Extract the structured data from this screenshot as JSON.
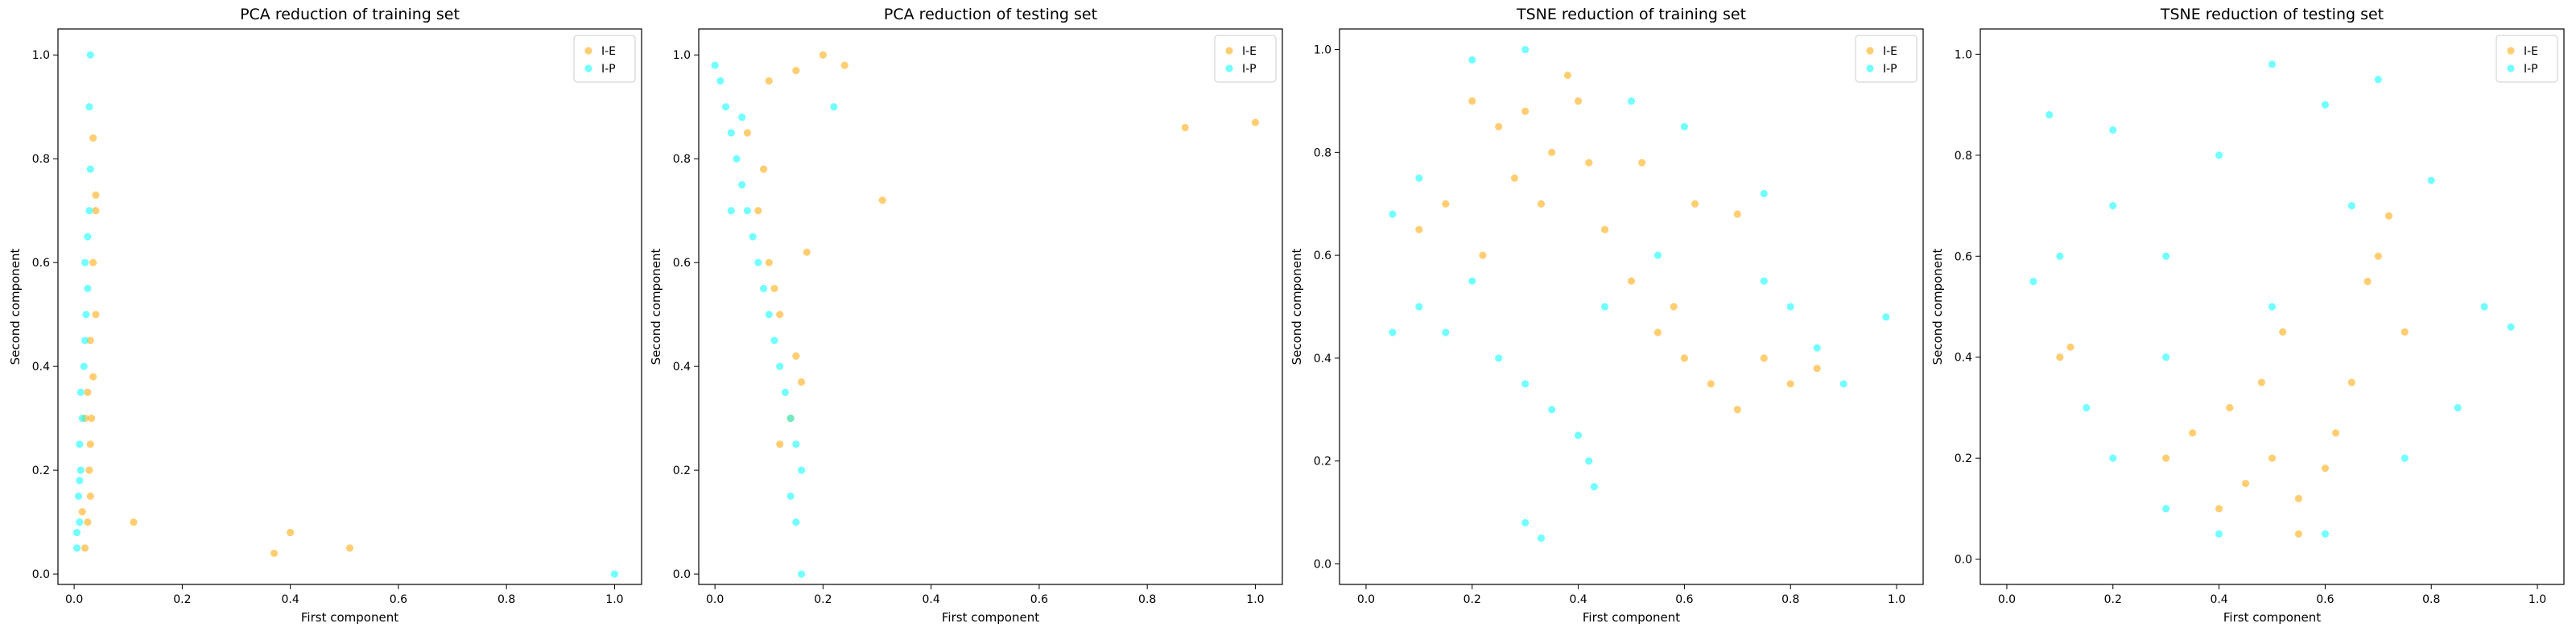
{
  "colors": {
    "I-E": "#FFA500",
    "I-P": "#00FFFF",
    "overlap": "#66CC33"
  },
  "chart_data": [
    {
      "type": "scatter",
      "title": "PCA reduction of training set",
      "xlabel": "First component",
      "ylabel": "Second component",
      "xlim": [
        -0.03,
        1.05
      ],
      "ylim": [
        -0.02,
        1.05
      ],
      "xticks": [
        "0.0",
        "0.2",
        "0.4",
        "0.6",
        "0.8",
        "1.0"
      ],
      "yticks": [
        "0.0",
        "0.2",
        "0.4",
        "0.6",
        "0.8",
        "1.0"
      ],
      "legend_position": "top-right",
      "series": [
        {
          "name": "I-E",
          "color": "#FFA500",
          "points": [
            [
              0.02,
              0.05
            ],
            [
              0.025,
              0.1
            ],
            [
              0.03,
              0.15
            ],
            [
              0.028,
              0.2
            ],
            [
              0.03,
              0.25
            ],
            [
              0.032,
              0.3
            ],
            [
              0.035,
              0.38
            ],
            [
              0.03,
              0.45
            ],
            [
              0.04,
              0.5
            ],
            [
              0.035,
              0.6
            ],
            [
              0.04,
              0.7
            ],
            [
              0.035,
              0.84
            ],
            [
              0.04,
              0.73
            ],
            [
              0.11,
              0.1
            ],
            [
              0.37,
              0.04
            ],
            [
              0.4,
              0.08
            ],
            [
              0.51,
              0.05
            ],
            [
              0.015,
              0.12
            ],
            [
              0.02,
              0.3
            ],
            [
              0.025,
              0.35
            ]
          ]
        },
        {
          "name": "I-P",
          "color": "#00FFFF",
          "points": [
            [
              0.005,
              0.05
            ],
            [
              0.01,
              0.1
            ],
            [
              0.008,
              0.15
            ],
            [
              0.012,
              0.2
            ],
            [
              0.01,
              0.25
            ],
            [
              0.015,
              0.3
            ],
            [
              0.012,
              0.35
            ],
            [
              0.018,
              0.4
            ],
            [
              0.02,
              0.45
            ],
            [
              0.022,
              0.5
            ],
            [
              0.025,
              0.55
            ],
            [
              0.02,
              0.6
            ],
            [
              0.025,
              0.65
            ],
            [
              0.028,
              0.7
            ],
            [
              0.03,
              0.78
            ],
            [
              0.028,
              0.9
            ],
            [
              0.03,
              1.0
            ],
            [
              1.0,
              0.0
            ],
            [
              0.005,
              0.08
            ],
            [
              0.01,
              0.18
            ]
          ]
        }
      ]
    },
    {
      "type": "scatter",
      "title": "PCA reduction of testing set",
      "xlabel": "First component",
      "ylabel": "Second component",
      "xlim": [
        -0.03,
        1.05
      ],
      "ylim": [
        -0.02,
        1.05
      ],
      "xticks": [
        "0.0",
        "0.2",
        "0.4",
        "0.6",
        "0.8",
        "1.0"
      ],
      "yticks": [
        "0.0",
        "0.2",
        "0.4",
        "0.6",
        "0.8",
        "1.0"
      ],
      "legend_position": "top-right",
      "series": [
        {
          "name": "I-E",
          "color": "#FFA500",
          "points": [
            [
              0.1,
              0.95
            ],
            [
              0.15,
              0.97
            ],
            [
              0.2,
              1.0
            ],
            [
              0.24,
              0.98
            ],
            [
              0.31,
              0.72
            ],
            [
              0.87,
              0.86
            ],
            [
              1.0,
              0.87
            ],
            [
              0.08,
              0.7
            ],
            [
              0.1,
              0.6
            ],
            [
              0.12,
              0.5
            ],
            [
              0.15,
              0.42
            ],
            [
              0.16,
              0.37
            ],
            [
              0.14,
              0.3
            ],
            [
              0.12,
              0.25
            ],
            [
              0.06,
              0.85
            ],
            [
              0.09,
              0.78
            ],
            [
              0.17,
              0.62
            ],
            [
              0.11,
              0.55
            ]
          ]
        },
        {
          "name": "I-P",
          "color": "#00FFFF",
          "points": [
            [
              0.0,
              0.98
            ],
            [
              0.01,
              0.95
            ],
            [
              0.02,
              0.9
            ],
            [
              0.03,
              0.85
            ],
            [
              0.04,
              0.8
            ],
            [
              0.05,
              0.75
            ],
            [
              0.06,
              0.7
            ],
            [
              0.07,
              0.65
            ],
            [
              0.08,
              0.6
            ],
            [
              0.09,
              0.55
            ],
            [
              0.1,
              0.5
            ],
            [
              0.11,
              0.45
            ],
            [
              0.12,
              0.4
            ],
            [
              0.13,
              0.35
            ],
            [
              0.14,
              0.3
            ],
            [
              0.15,
              0.25
            ],
            [
              0.16,
              0.2
            ],
            [
              0.14,
              0.15
            ],
            [
              0.15,
              0.1
            ],
            [
              0.16,
              0.0
            ],
            [
              0.22,
              0.9
            ],
            [
              0.05,
              0.88
            ],
            [
              0.03,
              0.7
            ]
          ]
        }
      ]
    },
    {
      "type": "scatter",
      "title": "TSNE reduction of training set",
      "xlabel": "First component",
      "ylabel": "Second component",
      "xlim": [
        -0.05,
        1.05
      ],
      "ylim": [
        -0.04,
        1.04
      ],
      "xticks": [
        "0.0",
        "0.2",
        "0.4",
        "0.6",
        "0.8",
        "1.0"
      ],
      "yticks": [
        "0.0",
        "0.2",
        "0.4",
        "0.6",
        "0.8",
        "1.0"
      ],
      "legend_position": "top-right",
      "series": [
        {
          "name": "I-E",
          "color": "#FFA500",
          "points": [
            [
              0.25,
              0.85
            ],
            [
              0.3,
              0.88
            ],
            [
              0.35,
              0.8
            ],
            [
              0.4,
              0.9
            ],
            [
              0.28,
              0.75
            ],
            [
              0.33,
              0.7
            ],
            [
              0.42,
              0.78
            ],
            [
              0.2,
              0.9
            ],
            [
              0.15,
              0.7
            ],
            [
              0.1,
              0.65
            ],
            [
              0.45,
              0.65
            ],
            [
              0.5,
              0.55
            ],
            [
              0.55,
              0.45
            ],
            [
              0.6,
              0.4
            ],
            [
              0.65,
              0.35
            ],
            [
              0.7,
              0.3
            ],
            [
              0.75,
              0.4
            ],
            [
              0.8,
              0.35
            ],
            [
              0.85,
              0.38
            ],
            [
              0.62,
              0.7
            ],
            [
              0.7,
              0.68
            ],
            [
              0.52,
              0.78
            ],
            [
              0.38,
              0.95
            ],
            [
              0.22,
              0.6
            ],
            [
              0.58,
              0.5
            ]
          ]
        },
        {
          "name": "I-P",
          "color": "#00FFFF",
          "points": [
            [
              0.1,
              0.5
            ],
            [
              0.15,
              0.45
            ],
            [
              0.2,
              0.55
            ],
            [
              0.25,
              0.4
            ],
            [
              0.3,
              0.35
            ],
            [
              0.35,
              0.3
            ],
            [
              0.4,
              0.25
            ],
            [
              0.42,
              0.2
            ],
            [
              0.43,
              0.15
            ],
            [
              0.33,
              0.05
            ],
            [
              0.3,
              0.08
            ],
            [
              0.05,
              0.45
            ],
            [
              0.05,
              0.68
            ],
            [
              0.1,
              0.75
            ],
            [
              0.2,
              0.98
            ],
            [
              0.3,
              1.0
            ],
            [
              0.5,
              0.9
            ],
            [
              0.6,
              0.85
            ],
            [
              0.75,
              0.55
            ],
            [
              0.8,
              0.5
            ],
            [
              0.85,
              0.42
            ],
            [
              0.9,
              0.35
            ],
            [
              0.98,
              0.48
            ],
            [
              0.75,
              0.72
            ],
            [
              0.55,
              0.6
            ],
            [
              0.45,
              0.5
            ]
          ]
        }
      ]
    },
    {
      "type": "scatter",
      "title": "TSNE reduction of testing set",
      "xlabel": "First component",
      "ylabel": "Second component",
      "xlim": [
        -0.05,
        1.05
      ],
      "ylim": [
        -0.05,
        1.05
      ],
      "xticks": [
        "0.0",
        "0.2",
        "0.4",
        "0.6",
        "0.8",
        "1.0"
      ],
      "yticks": [
        "0.0",
        "0.2",
        "0.4",
        "0.6",
        "0.8",
        "1.0"
      ],
      "legend_position": "top-right",
      "series": [
        {
          "name": "I-E",
          "color": "#FFA500",
          "points": [
            [
              0.4,
              0.1
            ],
            [
              0.45,
              0.15
            ],
            [
              0.5,
              0.2
            ],
            [
              0.55,
              0.12
            ],
            [
              0.6,
              0.18
            ],
            [
              0.42,
              0.3
            ],
            [
              0.48,
              0.35
            ],
            [
              0.35,
              0.25
            ],
            [
              0.7,
              0.6
            ],
            [
              0.72,
              0.68
            ],
            [
              0.68,
              0.55
            ],
            [
              0.75,
              0.45
            ],
            [
              0.1,
              0.4
            ],
            [
              0.12,
              0.42
            ],
            [
              0.55,
              0.05
            ],
            [
              0.62,
              0.25
            ],
            [
              0.3,
              0.2
            ],
            [
              0.52,
              0.45
            ],
            [
              0.65,
              0.35
            ]
          ]
        },
        {
          "name": "I-P",
          "color": "#00FFFF",
          "points": [
            [
              0.5,
              0.5
            ],
            [
              0.3,
              0.6
            ],
            [
              0.2,
              0.7
            ],
            [
              0.4,
              0.8
            ],
            [
              0.6,
              0.9
            ],
            [
              0.7,
              0.95
            ],
            [
              0.1,
              0.6
            ],
            [
              0.05,
              0.55
            ],
            [
              0.15,
              0.3
            ],
            [
              0.2,
              0.2
            ],
            [
              0.3,
              0.1
            ],
            [
              0.4,
              0.05
            ],
            [
              0.6,
              0.05
            ],
            [
              0.75,
              0.2
            ],
            [
              0.85,
              0.3
            ],
            [
              0.9,
              0.5
            ],
            [
              0.8,
              0.75
            ],
            [
              0.95,
              0.46
            ],
            [
              0.08,
              0.88
            ],
            [
              0.2,
              0.85
            ],
            [
              0.5,
              0.98
            ],
            [
              0.3,
              0.4
            ],
            [
              0.65,
              0.7
            ]
          ]
        }
      ]
    }
  ]
}
